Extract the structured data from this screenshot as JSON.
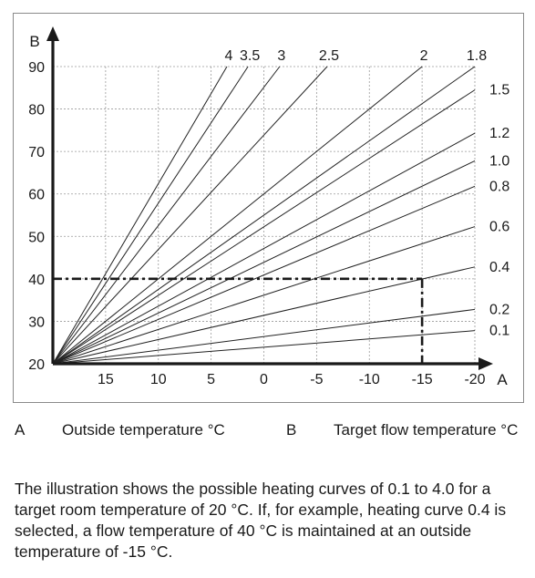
{
  "chart_data": {
    "type": "line",
    "xlabel": "A",
    "ylabel": "B",
    "x_ticks": [
      15,
      10,
      5,
      0,
      -5,
      -10,
      -15,
      -20
    ],
    "y_ticks": [
      20,
      30,
      40,
      50,
      60,
      70,
      80,
      90
    ],
    "xlim": [
      20,
      -20
    ],
    "ylim": [
      20,
      90
    ],
    "x_reversed": true,
    "grid": true,
    "series": [
      {
        "name": "0.1",
        "x": [
          20,
          -20
        ],
        "y": [
          20,
          27.8
        ]
      },
      {
        "name": "0.2",
        "x": [
          20,
          -20
        ],
        "y": [
          20,
          32.8
        ]
      },
      {
        "name": "0.4",
        "x": [
          20,
          -20
        ],
        "y": [
          20,
          42.8
        ]
      },
      {
        "name": "0.6",
        "x": [
          20,
          -20
        ],
        "y": [
          20,
          52.3
        ]
      },
      {
        "name": "0.8",
        "x": [
          20,
          -20
        ],
        "y": [
          20,
          61.8
        ]
      },
      {
        "name": "1.0",
        "x": [
          20,
          -20
        ],
        "y": [
          20,
          67.8
        ]
      },
      {
        "name": "1.2",
        "x": [
          20,
          -20
        ],
        "y": [
          20,
          74.3
        ]
      },
      {
        "name": "1.5",
        "x": [
          20,
          -20
        ],
        "y": [
          20,
          84.5
        ]
      },
      {
        "name": "1.8",
        "x": [
          20,
          -20
        ],
        "y": [
          20,
          90
        ]
      },
      {
        "name": "2",
        "x": [
          20,
          -15
        ],
        "y": [
          20,
          90
        ]
      },
      {
        "name": "2.5",
        "x": [
          20,
          -6
        ],
        "y": [
          20,
          90
        ]
      },
      {
        "name": "3",
        "x": [
          20,
          -1.5
        ],
        "y": [
          20,
          90
        ]
      },
      {
        "name": "3.5",
        "x": [
          20,
          1.5
        ],
        "y": [
          20,
          90
        ]
      },
      {
        "name": "4",
        "x": [
          20,
          3.5
        ],
        "y": [
          20,
          90
        ]
      }
    ],
    "annotation": {
      "curve": "0.4",
      "x": -15,
      "y": 40
    }
  },
  "legend": {
    "a_letter": "A",
    "a_text": "Outside temperature °C",
    "b_letter": "B",
    "b_text": "Target flow temperature °C"
  },
  "caption": "The illustration shows the possible heating curves of 0.1 to 4.0 for a target room temperature of 20 °C. If, for example, heating curve 0.4 is selected, a flow temperature of 40 °C is maintained at an outside temperature of -15 °C."
}
